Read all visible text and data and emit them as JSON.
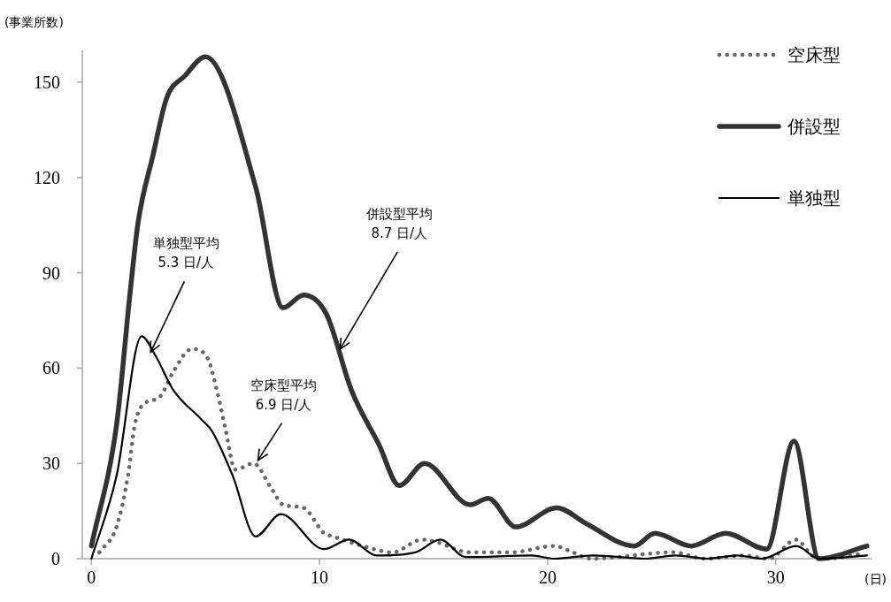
{
  "chart_data": {
    "type": "line",
    "ylabel": "(事業所数)",
    "xlabel": "(日)",
    "xlim": [
      -0.4,
      34.2
    ],
    "xticks": [
      0,
      10,
      20,
      30
    ],
    "ylim": [
      0,
      160
    ],
    "yticks": [
      0,
      30,
      60,
      90,
      120,
      150
    ],
    "grid": false,
    "legend": "top right",
    "marker": "none",
    "series": [
      {
        "name": "空床型",
        "color": "#666666",
        "line_style": "dotted",
        "x": [
          0.35,
          1.1,
          1.6,
          1.9,
          2.2,
          3.0,
          3.6,
          4.4,
          5.1,
          5.5,
          5.9,
          6.3,
          7.1,
          7.9,
          8.4,
          9.3,
          10.2,
          10.6,
          11.9,
          13.2,
          14.5,
          15.0,
          16.6,
          18.4,
          20.3,
          21.1,
          21.9,
          25.5,
          26.9,
          28.6,
          29.7,
          30.9,
          31.6,
          32.3,
          33.7
        ],
        "values": [
          2,
          10,
          26,
          42,
          48,
          51,
          59,
          66,
          63,
          53,
          40,
          28,
          30,
          22,
          17,
          16,
          8,
          7,
          4,
          2,
          6,
          5.5,
          2,
          2,
          4,
          2,
          0,
          2,
          0,
          1,
          0,
          6,
          1,
          0,
          1.5
        ]
      },
      {
        "name": "併設型",
        "color": "#333333",
        "line_style": "solid",
        "x": [
          0,
          1.1,
          1.7,
          2.05,
          2.7,
          3.3,
          4.1,
          5.0,
          7.2,
          8.4,
          9.3,
          10.3,
          11.4,
          12.6,
          13.5,
          14.6,
          16.6,
          17.4,
          18.6,
          20.4,
          21.7,
          23.8,
          24.7,
          26.3,
          27.8,
          29.6,
          30.8,
          31.9,
          34
        ],
        "values": [
          4,
          42,
          84,
          106,
          127,
          145,
          152,
          158,
          117,
          79,
          83,
          77,
          53,
          36,
          23,
          30,
          17,
          19,
          10,
          16,
          11,
          4,
          8,
          4,
          8,
          3,
          37,
          0,
          4
        ]
      },
      {
        "name": "単独型",
        "color": "#000000",
        "line_style": "solid",
        "x": [
          0,
          1.1,
          2.2,
          2.8,
          3.6,
          4.8,
          5.3,
          6.2,
          7.2,
          8.3,
          10.2,
          11.3,
          12.5,
          14.2,
          15.3,
          16.4,
          19.3,
          20.3,
          22.0,
          24.3,
          25.6,
          27.0,
          28.3,
          29.4,
          30.9,
          31.9,
          34
        ],
        "values": [
          0,
          26,
          70,
          64,
          53,
          44,
          40,
          26,
          7,
          14,
          3,
          6,
          1,
          2,
          6,
          0.5,
          1,
          0,
          1,
          0,
          1,
          0,
          1,
          0,
          4,
          0,
          1
        ]
      }
    ],
    "annotations": [
      {
        "text": "併設型平均\n8.7 日/人",
        "x": 10.9,
        "y": 66
      },
      {
        "text": "単独型平均\n5.3 日/人",
        "x": 2.6,
        "y": 65
      },
      {
        "text": "空床型平均\n6.9 日/人",
        "x": 7.3,
        "y": 31
      }
    ]
  }
}
